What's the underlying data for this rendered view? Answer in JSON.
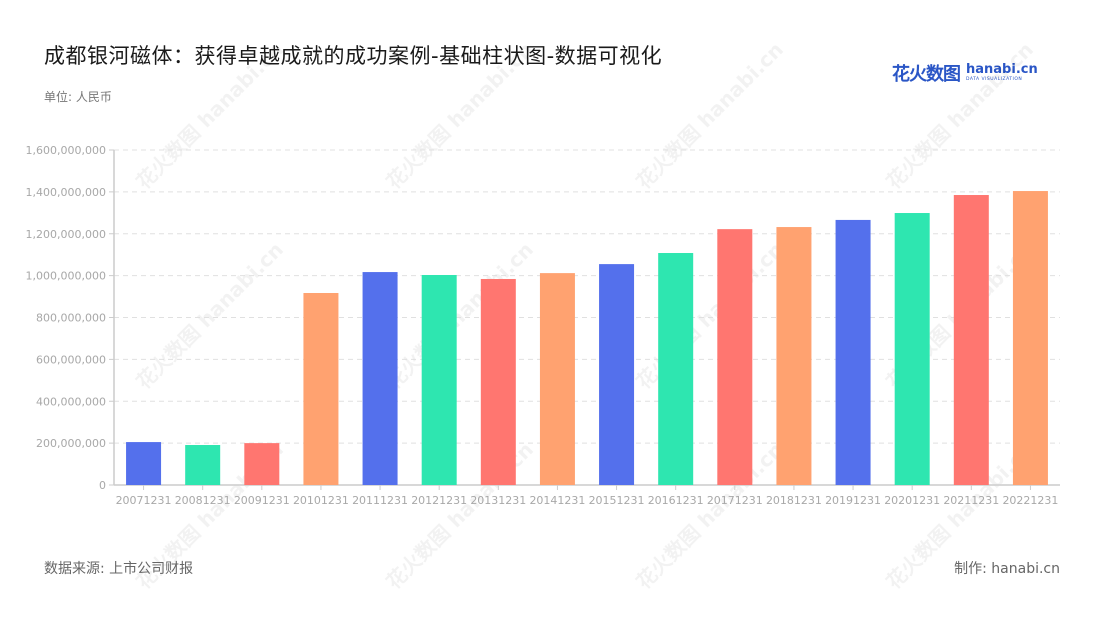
{
  "header": {
    "title": "成都银河磁体：获得卓越成就的成功案例-基础柱状图-数据可视化",
    "unit": "单位: 人民币",
    "logo_cn": "花火数图",
    "logo_en": "hanabi.cn",
    "logo_sub": "DATA VISUALIZATION"
  },
  "footer": {
    "source": "数据来源: 上市公司财报",
    "credit": "制作:  hanabi.cn"
  },
  "watermark_text": "花火数图 hanabi.cn",
  "colors": {
    "palette": [
      "#5470ec",
      "#2ee6b0",
      "#ff7670",
      "#ffa270"
    ],
    "axis": "#cccccc",
    "grid": "#e0e0e0",
    "tick_label": "#a8a8a8"
  },
  "chart_data": {
    "type": "bar",
    "title": "成都银河磁体：获得卓越成就的成功案例-基础柱状图-数据可视化",
    "subtitle": "单位: 人民币",
    "xlabel": "",
    "ylabel": "",
    "ylim": [
      0,
      1600000000
    ],
    "yticks": [
      0,
      200000000,
      400000000,
      600000000,
      800000000,
      1000000000,
      1200000000,
      1400000000,
      1600000000
    ],
    "ytick_labels": [
      "0",
      "200,000,000",
      "400,000,000",
      "600,000,000",
      "800,000,000",
      "1,000,000,000",
      "1,200,000,000",
      "1,400,000,000",
      "1,600,000,000"
    ],
    "grid": true,
    "legend": "none",
    "categories": [
      "20071231",
      "20081231",
      "20091231",
      "20101231",
      "20111231",
      "20121231",
      "20131231",
      "20141231",
      "20151231",
      "20161231",
      "20171231",
      "20181231",
      "20191231",
      "20201231",
      "20211231",
      "20221231"
    ],
    "values": [
      205000000,
      191000000,
      200000000,
      917000000,
      1017000000,
      1003000000,
      984000000,
      1012000000,
      1055000000,
      1108000000,
      1222000000,
      1232000000,
      1266000000,
      1299000000,
      1385000000,
      1404000000
    ],
    "bar_colors": [
      "#5470ec",
      "#2ee6b0",
      "#ff7670",
      "#ffa270",
      "#5470ec",
      "#2ee6b0",
      "#ff7670",
      "#ffa270",
      "#5470ec",
      "#2ee6b0",
      "#ff7670",
      "#ffa270",
      "#5470ec",
      "#2ee6b0",
      "#ff7670",
      "#ffa270"
    ]
  }
}
